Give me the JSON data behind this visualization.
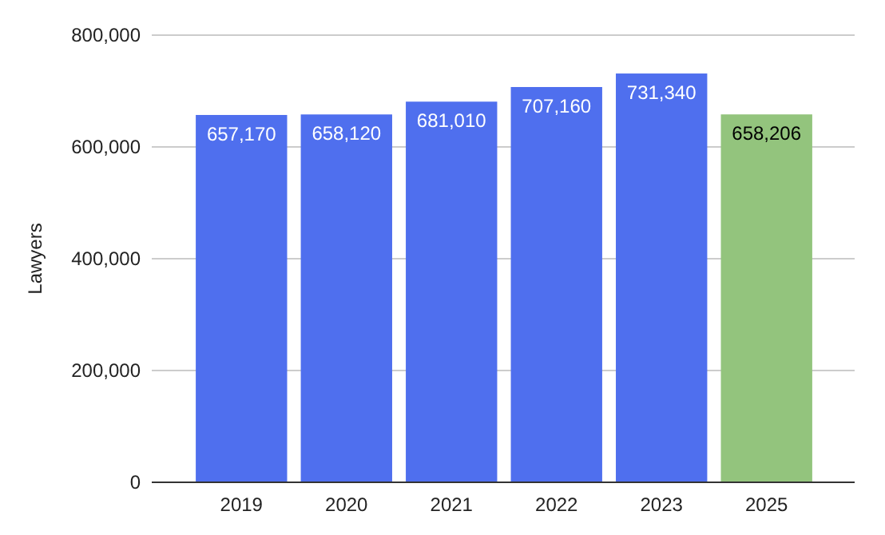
{
  "chart_data": {
    "type": "bar",
    "ylabel": "Lawyers",
    "categories": [
      "2019",
      "2020",
      "2021",
      "2022",
      "2023",
      "2025"
    ],
    "values": [
      657170,
      658120,
      681010,
      707160,
      731340,
      658206
    ],
    "colors": [
      "#4f6fee",
      "#4f6fee",
      "#4f6fee",
      "#4f6fee",
      "#4f6fee",
      "#93c47d"
    ],
    "ylim": [
      0,
      800000
    ],
    "yticks": [
      {
        "value": 0,
        "label": "0"
      },
      {
        "value": 200000,
        "label": "200,000"
      },
      {
        "value": 400000,
        "label": "400,000"
      },
      {
        "value": 600000,
        "label": "600,000"
      },
      {
        "value": 800000,
        "label": "800,000"
      }
    ],
    "value_labels": [
      "657,170",
      "658,120",
      "681,010",
      "707,160",
      "731,340",
      "658,206"
    ],
    "grid": true
  }
}
